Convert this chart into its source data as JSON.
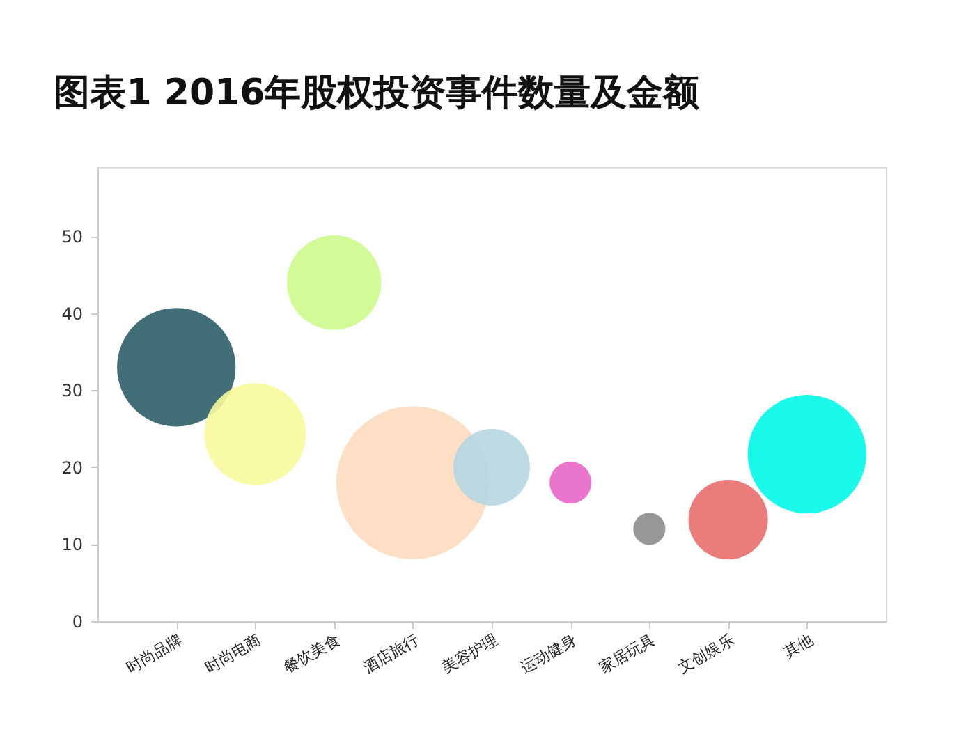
{
  "chart_data": {
    "type": "bubble",
    "title": "图表1 2016年股权投资事件数量及金额",
    "categories": [
      "时尚品牌",
      "时尚电商",
      "餐饮美食",
      "酒店旅行",
      "美容护理",
      "运动健身",
      "家居玩具",
      "文创娱乐",
      "其他"
    ],
    "values": [
      33,
      24.3,
      44,
      18,
      20,
      18,
      12,
      13.2,
      21.7
    ],
    "sizes": [
      0.6,
      0.44,
      0.38,
      1,
      0.25,
      0.075,
      0.044,
      0.27,
      0.6
    ],
    "colors": [
      "#2e5e69",
      "#f7fa9c",
      "#cdfa8b",
      "#fcdcbf",
      "#b6d6e2",
      "#e866c8",
      "#8c8c8c",
      "#e86e6e",
      "#00fae8"
    ],
    "ylim": [
      0,
      59
    ],
    "yticks": [
      0,
      10,
      20,
      30,
      40,
      50
    ],
    "grid": false,
    "legend": false
  }
}
